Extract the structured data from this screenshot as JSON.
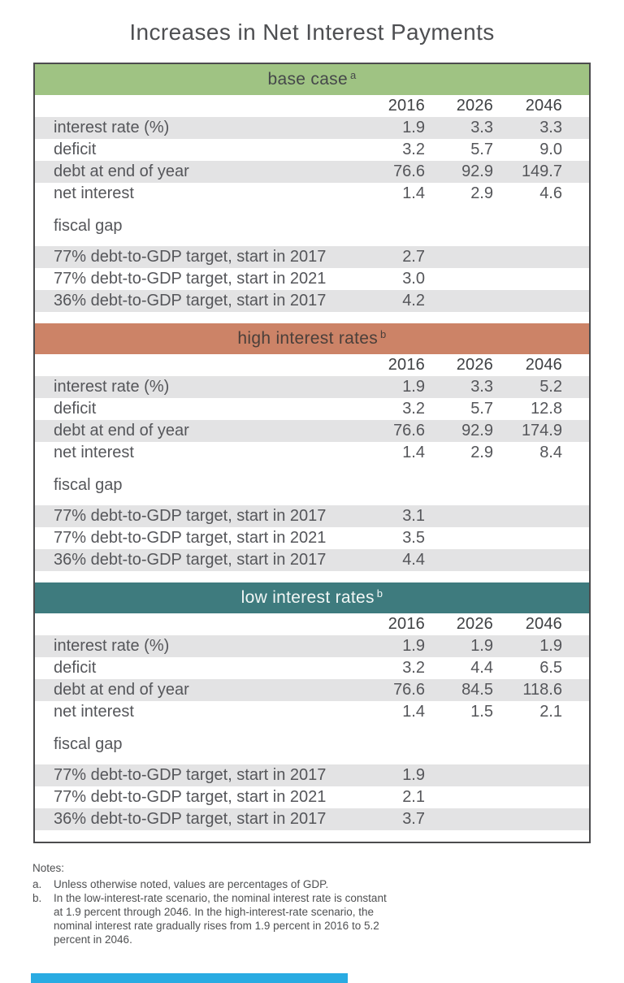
{
  "title": "Increases in Net Interest Payments",
  "colors": {
    "text": "#55565a",
    "stripe": "#e3e3e4",
    "table_border": "#4c4c4e",
    "base_case_header_bg": "#9fc383",
    "base_case_header_text": "#45484a",
    "high_rates_header_bg": "#cc8367",
    "high_rates_header_text": "#4a3f3a",
    "low_rates_header_bg": "#3e7b7e",
    "low_rates_header_text": "#f2f7f6",
    "footer_bar": "#29abe2"
  },
  "chart_data": {
    "type": "table",
    "title": "Increases in Net Interest Payments",
    "columns": [
      "2016",
      "2026",
      "2046"
    ],
    "sections": [
      {
        "id": "base-case",
        "header": "base case",
        "header_sup": "a",
        "header_bg": "#9fc383",
        "header_text_color": "#45484a",
        "rows": [
          {
            "label": "interest rate (%)",
            "values": [
              "1.9",
              "3.3",
              "3.3"
            ]
          },
          {
            "label": "deficit",
            "values": [
              "3.2",
              "5.7",
              "9.0"
            ]
          },
          {
            "label": "debt at end of year",
            "values": [
              "76.6",
              "92.9",
              "149.7"
            ]
          },
          {
            "label": "net interest",
            "values": [
              "1.4",
              "2.9",
              "4.6"
            ]
          }
        ],
        "subhead": "fiscal gap",
        "gap_rows": [
          {
            "label": "77% debt-to-GDP target, start in 2017",
            "value": "2.7"
          },
          {
            "label": "77% debt-to-GDP target, start in 2021",
            "value": "3.0"
          },
          {
            "label": "36% debt-to-GDP target, start in 2017",
            "value": "4.2"
          }
        ]
      },
      {
        "id": "high-interest-rates",
        "header": "high interest rates",
        "header_sup": "b",
        "header_bg": "#cc8367",
        "header_text_color": "#4a3f3a",
        "rows": [
          {
            "label": "interest rate (%)",
            "values": [
              "1.9",
              "3.3",
              "5.2"
            ]
          },
          {
            "label": "deficit",
            "values": [
              "3.2",
              "5.7",
              "12.8"
            ]
          },
          {
            "label": "debt at end of year",
            "values": [
              "76.6",
              "92.9",
              "174.9"
            ]
          },
          {
            "label": "net interest",
            "values": [
              "1.4",
              "2.9",
              "8.4"
            ]
          }
        ],
        "subhead": "fiscal gap",
        "gap_rows": [
          {
            "label": "77% debt-to-GDP target, start in 2017",
            "value": "3.1"
          },
          {
            "label": "77% debt-to-GDP target, start in 2021",
            "value": "3.5"
          },
          {
            "label": "36% debt-to-GDP target, start in 2017",
            "value": "4.4"
          }
        ]
      },
      {
        "id": "low-interest-rates",
        "header": "low interest rates",
        "header_sup": "b",
        "header_bg": "#3e7b7e",
        "header_text_color": "#f2f7f6",
        "rows": [
          {
            "label": "interest rate (%)",
            "values": [
              "1.9",
              "1.9",
              "1.9"
            ]
          },
          {
            "label": "deficit",
            "values": [
              "3.2",
              "4.4",
              "6.5"
            ]
          },
          {
            "label": "debt at end of year",
            "values": [
              "76.6",
              "84.5",
              "118.6"
            ]
          },
          {
            "label": "net interest",
            "values": [
              "1.4",
              "1.5",
              "2.1"
            ]
          }
        ],
        "subhead": "fiscal gap",
        "gap_rows": [
          {
            "label": "77% debt-to-GDP target, start in 2017",
            "value": "1.9"
          },
          {
            "label": "77% debt-to-GDP target, start in 2021",
            "value": "2.1"
          },
          {
            "label": "36% debt-to-GDP target, start in 2017",
            "value": "3.7"
          }
        ]
      }
    ],
    "notes": {
      "heading": "Notes:",
      "items": [
        {
          "marker": "a.",
          "text": "Unless otherwise noted, values are percentages of GDP."
        },
        {
          "marker": "b.",
          "text": "In the low-interest-rate scenario, the nominal interest rate is constant at 1.9 percent through 2046. In the high-interest-rate scenario, the nominal interest rate gradually rises from 1.9 percent in 2016 to 5.2 percent in 2046."
        }
      ]
    }
  }
}
